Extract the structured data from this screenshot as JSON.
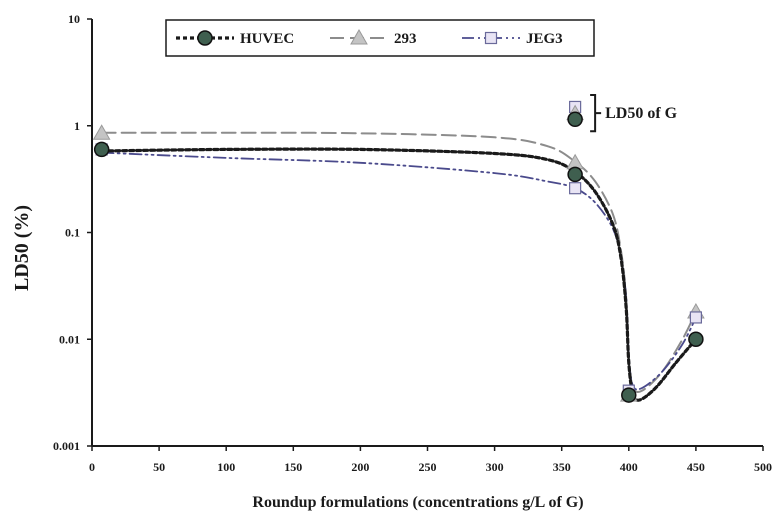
{
  "chart_data": {
    "type": "line",
    "xlabel": "Roundup formulations (concentrations g/L of G)",
    "ylabel": "LD50 (%)",
    "yscale": "log",
    "xlim": [
      0,
      500
    ],
    "ylim": [
      0.001,
      10
    ],
    "xticks": [
      "0",
      "50",
      "100",
      "150",
      "200",
      "250",
      "300",
      "350",
      "400",
      "450",
      "500"
    ],
    "yticks": [
      "0.001",
      "0.01",
      "0.1",
      "1",
      "10"
    ],
    "grid": false,
    "legend_position": "top",
    "series": [
      {
        "name": "HUVEC",
        "color": "#1a1a1a",
        "marker": "filled-circle",
        "points": [
          [
            7.2,
            0.6
          ],
          [
            360,
            0.35
          ],
          [
            400,
            0.003
          ],
          [
            450,
            0.01
          ]
        ],
        "curve": [
          [
            7.2,
            0.58
          ],
          [
            100,
            0.6
          ],
          [
            200,
            0.6
          ],
          [
            300,
            0.55
          ],
          [
            340,
            0.48
          ],
          [
            360,
            0.37
          ],
          [
            375,
            0.24
          ],
          [
            388,
            0.12
          ],
          [
            394,
            0.06
          ],
          [
            398,
            0.02
          ],
          [
            400,
            0.006
          ],
          [
            403,
            0.0031
          ],
          [
            408,
            0.0027
          ],
          [
            420,
            0.0035
          ],
          [
            435,
            0.006
          ],
          [
            450,
            0.01
          ]
        ]
      },
      {
        "name": "293",
        "color": "#8c8c8c",
        "marker": "triangle",
        "points": [
          [
            7.2,
            0.85
          ],
          [
            360,
            0.45
          ],
          [
            400,
            0.003
          ],
          [
            450,
            0.018
          ]
        ],
        "curve": [
          [
            7.2,
            0.86
          ],
          [
            100,
            0.86
          ],
          [
            200,
            0.85
          ],
          [
            300,
            0.78
          ],
          [
            340,
            0.64
          ],
          [
            360,
            0.46
          ],
          [
            375,
            0.3
          ],
          [
            388,
            0.15
          ],
          [
            394,
            0.07
          ],
          [
            398,
            0.025
          ],
          [
            400,
            0.007
          ],
          [
            403,
            0.0036
          ],
          [
            410,
            0.0033
          ],
          [
            425,
            0.005
          ],
          [
            440,
            0.01
          ],
          [
            450,
            0.018
          ]
        ]
      },
      {
        "name": "JEG3",
        "color": "#4a4a8c",
        "marker": "open-square",
        "points": [
          [
            7.2,
            0.6
          ],
          [
            360,
            0.26
          ],
          [
            400,
            0.0033
          ],
          [
            450,
            0.016
          ]
        ],
        "curve": [
          [
            7.2,
            0.56
          ],
          [
            100,
            0.5
          ],
          [
            200,
            0.45
          ],
          [
            300,
            0.36
          ],
          [
            340,
            0.3
          ],
          [
            360,
            0.26
          ],
          [
            375,
            0.19
          ],
          [
            388,
            0.11
          ],
          [
            394,
            0.06
          ],
          [
            398,
            0.025
          ],
          [
            400,
            0.007
          ],
          [
            403,
            0.0037
          ],
          [
            410,
            0.0035
          ],
          [
            425,
            0.005
          ],
          [
            440,
            0.009
          ],
          [
            450,
            0.016
          ]
        ]
      }
    ],
    "annotation": {
      "text": "LD50 of G",
      "x": 360,
      "points": [
        {
          "series": "HUVEC",
          "y": 1.15
        },
        {
          "series": "293",
          "y": 1.3
        },
        {
          "series": "JEG3",
          "y": 1.5
        }
      ]
    }
  }
}
